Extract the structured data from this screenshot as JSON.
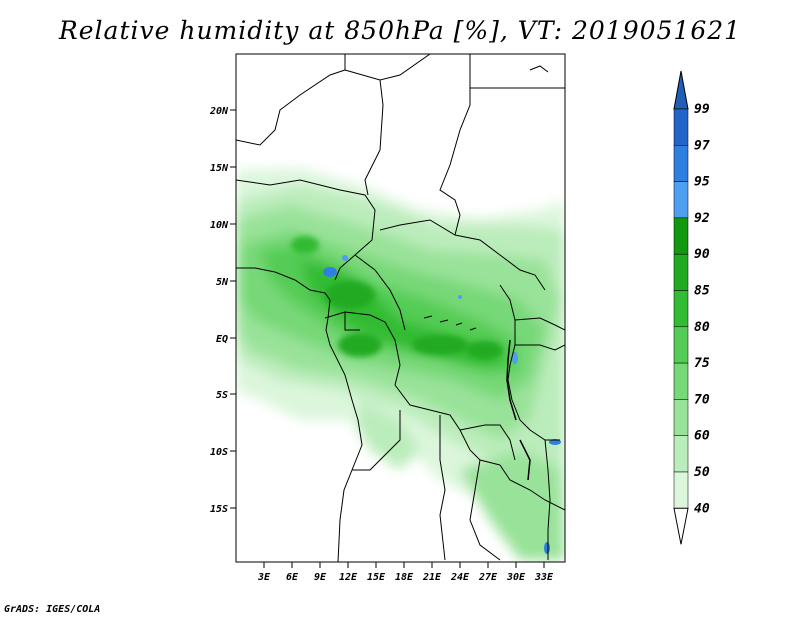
{
  "title": "Relative humidity at 850hPa [%], VT: 2019051621",
  "credit": "GrADS: IGES/COLA",
  "map": {
    "lat_ticks": [
      "20N",
      "15N",
      "10N",
      "5N",
      "EQ",
      "5S",
      "10S",
      "15S"
    ],
    "lon_ticks": [
      "3E",
      "6E",
      "9E",
      "12E",
      "15E",
      "18E",
      "21E",
      "24E",
      "27E",
      "30E",
      "33E"
    ]
  },
  "colorbar": {
    "levels": [
      "99",
      "97",
      "95",
      "92",
      "90",
      "85",
      "80",
      "75",
      "70",
      "60",
      "50",
      "40"
    ],
    "colors": [
      "#2265c8",
      "#2f7fe0",
      "#4f9ff0",
      "#119a11",
      "#22aa22",
      "#33bb33",
      "#55cc55",
      "#77d877",
      "#99e299",
      "#bbecbb",
      "#dcf6dc",
      "#f0fbf0"
    ],
    "top_color": "#1f5fb8"
  }
}
